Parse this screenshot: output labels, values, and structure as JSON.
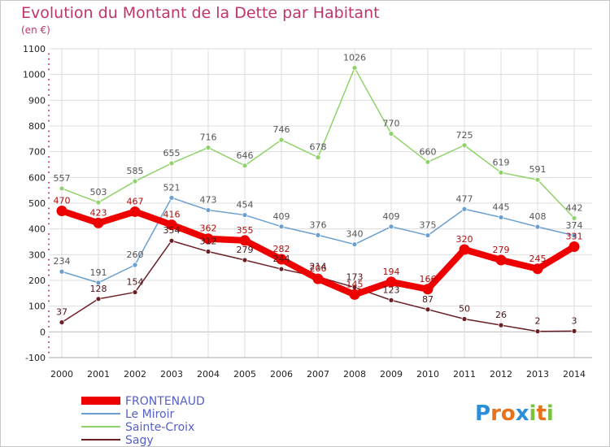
{
  "chart_data": {
    "type": "line",
    "title": "Evolution du Montant de la Dette par Habitant",
    "subtitle": "(en €)",
    "x": [
      "2000",
      "2001",
      "2002",
      "2003",
      "2004",
      "2005",
      "2006",
      "2007",
      "2008",
      "2009",
      "2010",
      "2011",
      "2012",
      "2013",
      "2014"
    ],
    "ylim": [
      -100,
      1100
    ],
    "yticks": [
      -100,
      0,
      100,
      200,
      300,
      400,
      500,
      600,
      700,
      800,
      900,
      1000,
      1100
    ],
    "grid": true,
    "legend_position": "bottom-left",
    "series": [
      {
        "name": "FRONTENAUD",
        "color": "#ee0000",
        "values": [
          470,
          423,
          467,
          416,
          362,
          355,
          282,
          206,
          145,
          194,
          166,
          320,
          279,
          245,
          331
        ]
      },
      {
        "name": "Le Miroir",
        "color": "#6a9fd0",
        "values": [
          234,
          191,
          260,
          521,
          473,
          454,
          409,
          376,
          340,
          409,
          375,
          477,
          445,
          408,
          374
        ]
      },
      {
        "name": "Sainte-Croix",
        "color": "#8fd36a",
        "values": [
          557,
          503,
          585,
          655,
          716,
          646,
          746,
          678,
          1026,
          770,
          660,
          725,
          619,
          591,
          442
        ]
      },
      {
        "name": "Sagy",
        "color": "#6b1f24",
        "values": [
          37,
          128,
          154,
          354,
          312,
          279,
          244,
          214,
          173,
          123,
          87,
          50,
          26,
          2,
          3
        ]
      }
    ]
  },
  "logo": {
    "text": "Proxiti"
  }
}
